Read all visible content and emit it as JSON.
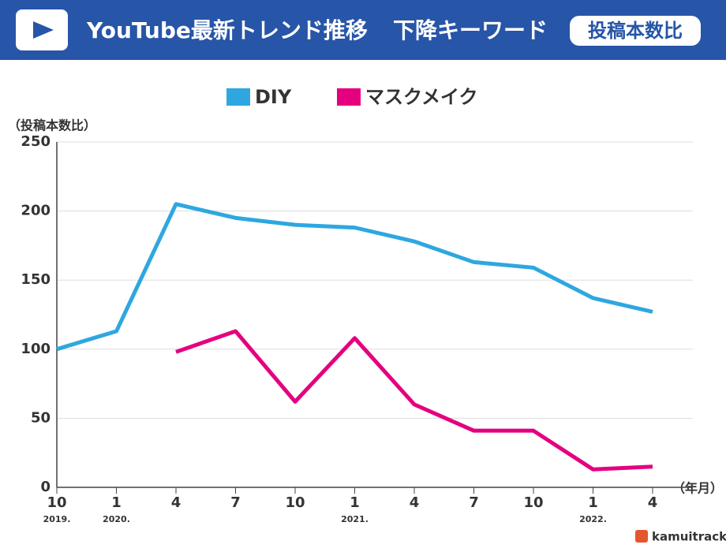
{
  "header": {
    "title": "YouTube最新トレンド推移",
    "subtitle": "下降キーワード",
    "badge": "投稿本数比"
  },
  "chart_data": {
    "type": "line",
    "y_label": "（投稿本数比）",
    "x_label": "（年月）",
    "categories": [
      "10",
      "1",
      "4",
      "7",
      "10",
      "1",
      "4",
      "7",
      "10",
      "1",
      "4"
    ],
    "year_labels": [
      "2019.",
      "2020.",
      null,
      null,
      null,
      "2021.",
      null,
      null,
      null,
      "2022.",
      null
    ],
    "series": [
      {
        "name": "DIY",
        "color": "#2ea7e0",
        "values": [
          100,
          113,
          205,
          195,
          190,
          188,
          178,
          163,
          159,
          137,
          127
        ]
      },
      {
        "name": "マスクメイク",
        "color": "#e4007f",
        "values": [
          null,
          null,
          98,
          113,
          62,
          108,
          60,
          41,
          41,
          13,
          15
        ]
      }
    ],
    "ylim": [
      0,
      250
    ],
    "yticks": [
      0,
      50,
      100,
      150,
      200,
      250
    ],
    "grid": true
  },
  "footer": {
    "logo": "kamuitracker"
  }
}
